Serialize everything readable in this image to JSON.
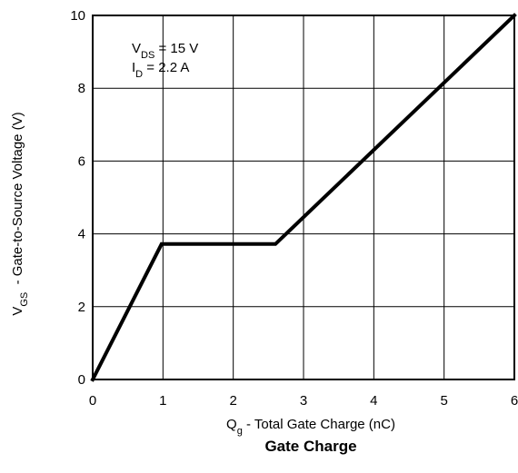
{
  "chart_data": {
    "type": "line",
    "caption": "Gate Charge",
    "xlabel": {
      "main": "Q",
      "sub": "g",
      "rest": " - Total Gate Charge (nC)"
    },
    "ylabel": {
      "main": "V",
      "sub": "GS",
      "rest": "  - Gate-to-Source Voltage (V)"
    },
    "xlim": [
      0,
      6
    ],
    "ylim": [
      0,
      10
    ],
    "xticks": [
      0,
      1,
      2,
      3,
      4,
      5,
      6
    ],
    "yticks": [
      0,
      2,
      4,
      6,
      8,
      10
    ],
    "grid": true,
    "annotations": [
      {
        "main": "V",
        "sub": "DS",
        "rest": " = 15 V"
      },
      {
        "main": "I",
        "sub": "D",
        "rest": " =  2.2 A"
      }
    ],
    "series": [
      {
        "x": [
          0,
          0.98,
          2.6,
          6.0
        ],
        "y": [
          0,
          3.72,
          3.72,
          10.0
        ]
      }
    ]
  }
}
